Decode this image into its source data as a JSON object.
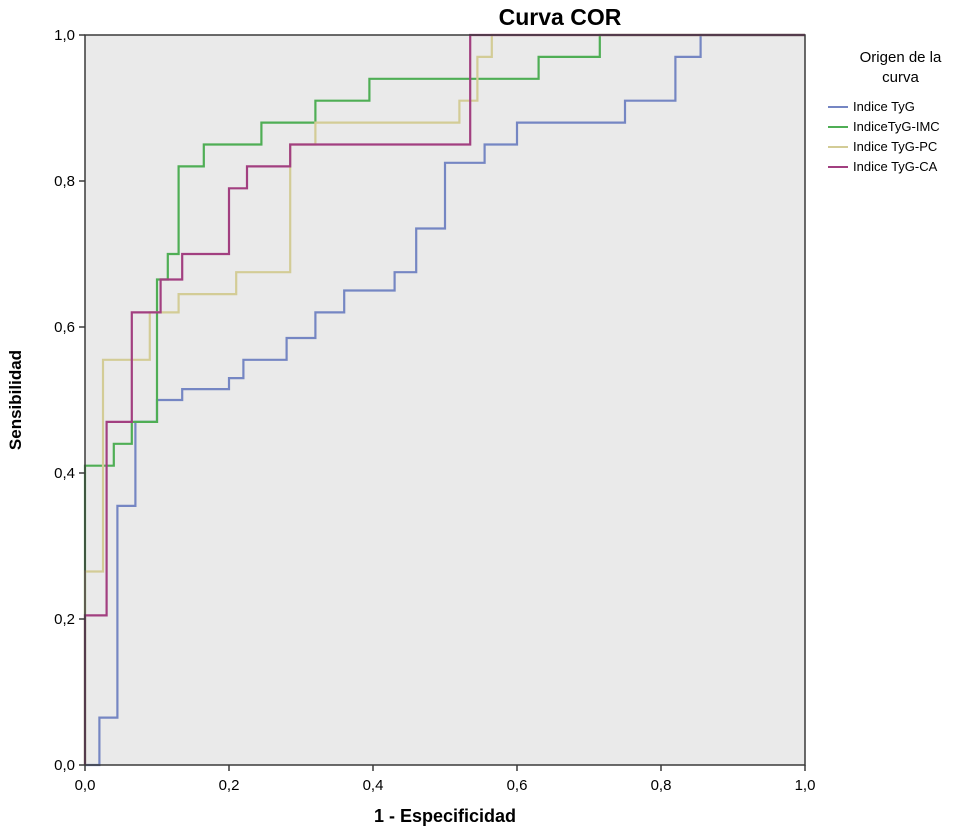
{
  "chart_data": {
    "type": "line",
    "subtype": "roc-step-curves",
    "title": "Curva COR",
    "xlabel": "1 - Especificidad",
    "ylabel": "Sensibilidad",
    "xlim": [
      0,
      1
    ],
    "ylim": [
      0,
      1
    ],
    "xticks": [
      0,
      0.2,
      0.4,
      0.6,
      0.8,
      1
    ],
    "yticks": [
      0,
      0.2,
      0.4,
      0.6,
      0.8,
      1
    ],
    "tick_labels": [
      "0,0",
      "0,2",
      "0,4",
      "0,6",
      "0,8",
      "1,0"
    ],
    "grid": false,
    "plot_bg": "#eaeaea",
    "axis_color": "#3a3a3a",
    "legend_title": "Origen de la curva",
    "legend_position": "right",
    "series": [
      {
        "name": "Indice TyG",
        "color": "#7586c3",
        "points": [
          [
            0,
            0
          ],
          [
            0.02,
            0
          ],
          [
            0.02,
            0.065
          ],
          [
            0.045,
            0.065
          ],
          [
            0.045,
            0.355
          ],
          [
            0.07,
            0.355
          ],
          [
            0.07,
            0.47
          ],
          [
            0.1,
            0.47
          ],
          [
            0.1,
            0.5
          ],
          [
            0.135,
            0.5
          ],
          [
            0.135,
            0.515
          ],
          [
            0.2,
            0.515
          ],
          [
            0.2,
            0.53
          ],
          [
            0.22,
            0.53
          ],
          [
            0.22,
            0.555
          ],
          [
            0.28,
            0.555
          ],
          [
            0.28,
            0.585
          ],
          [
            0.32,
            0.585
          ],
          [
            0.32,
            0.62
          ],
          [
            0.36,
            0.62
          ],
          [
            0.36,
            0.65
          ],
          [
            0.43,
            0.65
          ],
          [
            0.43,
            0.675
          ],
          [
            0.46,
            0.675
          ],
          [
            0.46,
            0.735
          ],
          [
            0.5,
            0.735
          ],
          [
            0.5,
            0.825
          ],
          [
            0.555,
            0.825
          ],
          [
            0.555,
            0.85
          ],
          [
            0.6,
            0.85
          ],
          [
            0.6,
            0.88
          ],
          [
            0.75,
            0.88
          ],
          [
            0.75,
            0.91
          ],
          [
            0.82,
            0.91
          ],
          [
            0.82,
            0.97
          ],
          [
            0.855,
            0.97
          ],
          [
            0.855,
            1
          ],
          [
            1,
            1
          ]
        ]
      },
      {
        "name": "IndiceTyG-IMC",
        "color": "#4fae55",
        "points": [
          [
            0,
            0
          ],
          [
            0,
            0.41
          ],
          [
            0.04,
            0.41
          ],
          [
            0.04,
            0.44
          ],
          [
            0.065,
            0.44
          ],
          [
            0.065,
            0.47
          ],
          [
            0.1,
            0.47
          ],
          [
            0.1,
            0.665
          ],
          [
            0.115,
            0.665
          ],
          [
            0.115,
            0.7
          ],
          [
            0.13,
            0.7
          ],
          [
            0.13,
            0.82
          ],
          [
            0.165,
            0.82
          ],
          [
            0.165,
            0.85
          ],
          [
            0.245,
            0.85
          ],
          [
            0.245,
            0.88
          ],
          [
            0.32,
            0.88
          ],
          [
            0.32,
            0.91
          ],
          [
            0.395,
            0.91
          ],
          [
            0.395,
            0.94
          ],
          [
            0.63,
            0.94
          ],
          [
            0.63,
            0.97
          ],
          [
            0.715,
            0.97
          ],
          [
            0.715,
            1
          ],
          [
            1,
            1
          ]
        ]
      },
      {
        "name": "Indice TyG-PC",
        "color": "#d3cc96",
        "points": [
          [
            0,
            0
          ],
          [
            0,
            0.265
          ],
          [
            0.025,
            0.265
          ],
          [
            0.025,
            0.555
          ],
          [
            0.09,
            0.555
          ],
          [
            0.09,
            0.62
          ],
          [
            0.13,
            0.62
          ],
          [
            0.13,
            0.645
          ],
          [
            0.21,
            0.645
          ],
          [
            0.21,
            0.675
          ],
          [
            0.285,
            0.675
          ],
          [
            0.285,
            0.85
          ],
          [
            0.32,
            0.85
          ],
          [
            0.32,
            0.88
          ],
          [
            0.52,
            0.88
          ],
          [
            0.52,
            0.91
          ],
          [
            0.545,
            0.91
          ],
          [
            0.545,
            0.97
          ],
          [
            0.565,
            0.97
          ],
          [
            0.565,
            1
          ],
          [
            1,
            1
          ]
        ]
      },
      {
        "name": "Indice TyG-CA",
        "color": "#a23f80",
        "points": [
          [
            0,
            0
          ],
          [
            0,
            0.205
          ],
          [
            0.03,
            0.205
          ],
          [
            0.03,
            0.47
          ],
          [
            0.065,
            0.47
          ],
          [
            0.065,
            0.62
          ],
          [
            0.105,
            0.62
          ],
          [
            0.105,
            0.665
          ],
          [
            0.135,
            0.665
          ],
          [
            0.135,
            0.7
          ],
          [
            0.2,
            0.7
          ],
          [
            0.2,
            0.79
          ],
          [
            0.225,
            0.79
          ],
          [
            0.225,
            0.82
          ],
          [
            0.285,
            0.82
          ],
          [
            0.285,
            0.85
          ],
          [
            0.535,
            0.85
          ],
          [
            0.535,
            1
          ],
          [
            1,
            1
          ]
        ]
      }
    ]
  }
}
